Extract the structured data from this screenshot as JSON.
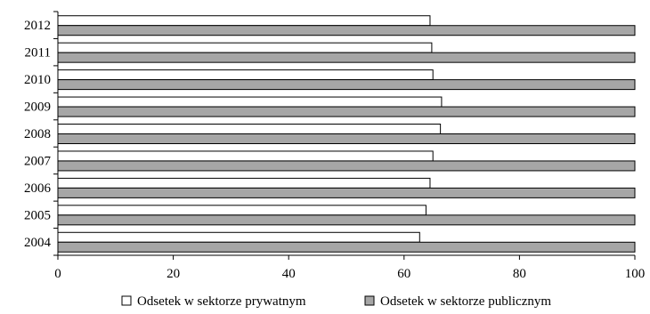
{
  "chart_data": {
    "type": "bar",
    "orientation": "horizontal",
    "categories": [
      "2012",
      "2011",
      "2010",
      "2009",
      "2008",
      "2007",
      "2006",
      "2005",
      "2004"
    ],
    "series": [
      {
        "name": "Odsetek w sektorze prywatnym",
        "color": "#ffffff",
        "values": [
          64.5,
          64.8,
          65.0,
          66.5,
          66.3,
          65.0,
          64.5,
          63.8,
          62.7
        ]
      },
      {
        "name": "Odsetek w sektorze publicznym",
        "color": "#a6a6a6",
        "values": [
          100,
          100,
          100,
          100,
          100,
          100,
          100,
          100,
          100
        ]
      }
    ],
    "xlim": [
      0,
      100
    ],
    "xticks": [
      0,
      20,
      40,
      60,
      80,
      100
    ],
    "title": "",
    "xlabel": "",
    "ylabel": "",
    "grid": false,
    "legend_position": "bottom"
  }
}
